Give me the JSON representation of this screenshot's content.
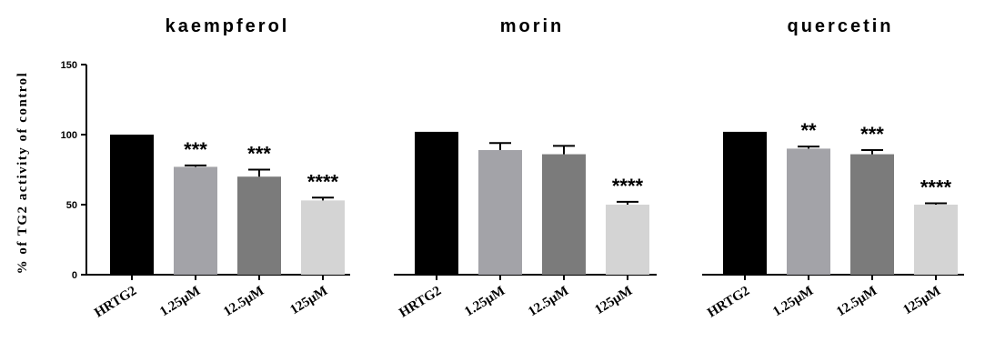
{
  "figure": {
    "ylabel": "% of TG2 activity of control"
  },
  "chart_data": [
    {
      "type": "bar",
      "title": "kaempferol",
      "ylabel": "% of TG2 activity of control",
      "categories": [
        "HRTG2",
        "1.25μM",
        "12.5μM",
        "125μM"
      ],
      "values": [
        100,
        77,
        70,
        53
      ],
      "errors": [
        0,
        1,
        5,
        2
      ],
      "significance": [
        "",
        "***",
        "***",
        "****"
      ],
      "colors": [
        "#000000",
        "#a3a3a8",
        "#7b7b7b",
        "#d4d4d4"
      ],
      "ylim": [
        0,
        150
      ],
      "yticks": [
        "0",
        "50",
        "100",
        "150"
      ],
      "show_yaxis": true
    },
    {
      "type": "bar",
      "title": "morin",
      "categories": [
        "HRTG2",
        "1.25μM",
        "12.5μM",
        "125μM"
      ],
      "values": [
        102,
        89,
        86,
        50
      ],
      "errors": [
        0,
        5,
        6,
        2
      ],
      "significance": [
        "",
        "",
        "",
        "****"
      ],
      "colors": [
        "#000000",
        "#a3a3a8",
        "#7b7b7b",
        "#d4d4d4"
      ],
      "ylim": [
        0,
        150
      ],
      "show_yaxis": false
    },
    {
      "type": "bar",
      "title": "quercetin",
      "categories": [
        "HRTG2",
        "1.25μM",
        "12.5μM",
        "125μM"
      ],
      "values": [
        102,
        90,
        86,
        50
      ],
      "errors": [
        0,
        1.5,
        3,
        1
      ],
      "significance": [
        "",
        "**",
        "***",
        "****"
      ],
      "colors": [
        "#000000",
        "#a3a3a8",
        "#7b7b7b",
        "#d4d4d4"
      ],
      "ylim": [
        0,
        150
      ],
      "show_yaxis": false
    }
  ]
}
